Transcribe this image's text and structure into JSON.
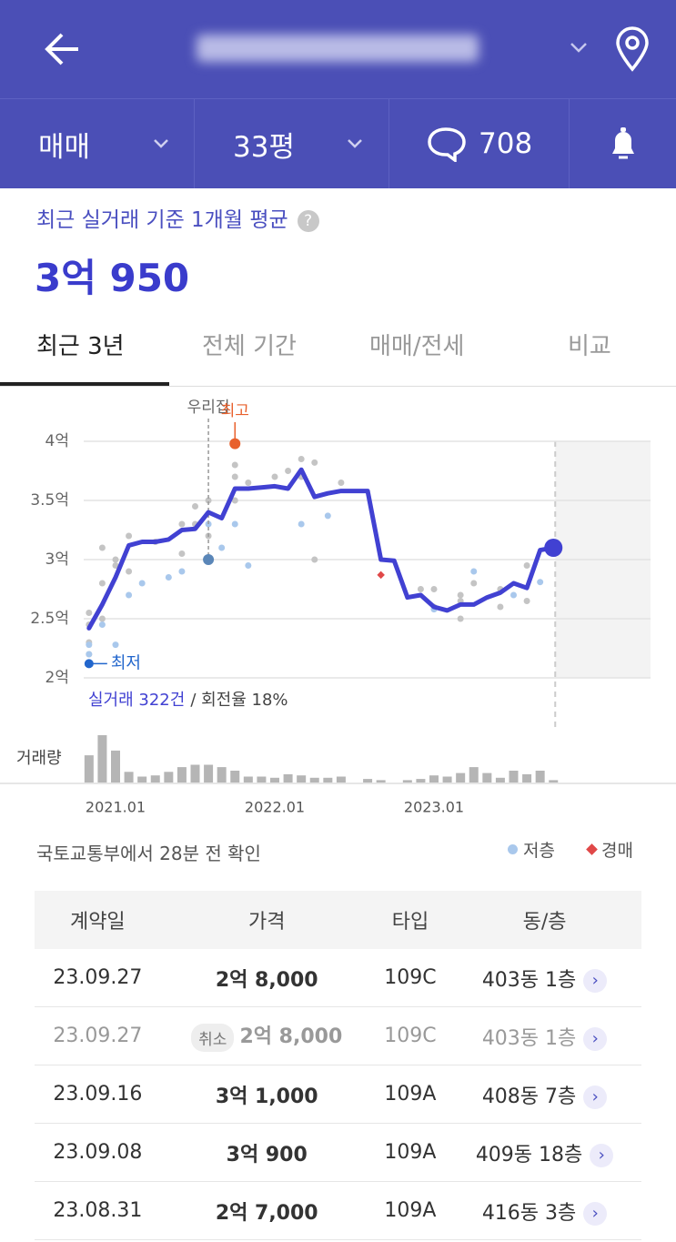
{
  "header": {
    "trade_type": "매매",
    "size": "33평",
    "comment_count": 708
  },
  "summary": {
    "label": "최근 실거래 기준 1개월 평균",
    "value": "3억 950"
  },
  "tabs": [
    "최근 3년",
    "전체 기간",
    "매매/전세",
    "비교"
  ],
  "chart_data": {
    "type": "line",
    "x": [
      "2020.11",
      "2020.12",
      "2021.01",
      "2021.02",
      "2021.03",
      "2021.04",
      "2021.05",
      "2021.06",
      "2021.07",
      "2021.08",
      "2021.09",
      "2021.10",
      "2021.11",
      "2021.12",
      "2022.01",
      "2022.02",
      "2022.03",
      "2022.04",
      "2022.05",
      "2022.06",
      "2022.07",
      "2022.08",
      "2022.09",
      "2022.10",
      "2022.11",
      "2022.12",
      "2023.01",
      "2023.02",
      "2023.03",
      "2023.04",
      "2023.05",
      "2023.06",
      "2023.07",
      "2023.08",
      "2023.09",
      "2023.10"
    ],
    "series": [
      {
        "color": "#4141d2",
        "values": [
          2.42,
          2.62,
          2.85,
          3.12,
          3.15,
          3.15,
          3.17,
          3.25,
          3.26,
          3.4,
          3.35,
          3.6,
          3.6,
          3.61,
          3.62,
          3.6,
          3.76,
          3.53,
          3.56,
          3.58,
          3.58,
          3.58,
          3.0,
          2.99,
          2.68,
          2.7,
          2.6,
          2.57,
          2.62,
          2.62,
          2.68,
          2.72,
          2.8,
          2.76,
          3.08,
          3.1
        ]
      }
    ],
    "points": [
      {
        "color": "#c4c4c4",
        "x": [
          "2020.11",
          "2020.11",
          "2020.11",
          "2020.11",
          "2020.12",
          "2020.12",
          "2020.12",
          "2021.01",
          "2021.01",
          "2021.02",
          "2021.02",
          "2021.04",
          "2021.06",
          "2021.06",
          "2021.07",
          "2021.07",
          "2021.08",
          "2021.08",
          "2021.08",
          "2021.10",
          "2021.10",
          "2021.10",
          "2021.11",
          "2022.01",
          "2022.02",
          "2022.03",
          "2022.03",
          "2022.04",
          "2022.04",
          "2022.06",
          "2022.12",
          "2023.01",
          "2023.01",
          "2023.03",
          "2023.03",
          "2023.03",
          "2023.04",
          "2023.06",
          "2023.06",
          "2023.08",
          "2023.08"
        ],
        "values": [
          2.55,
          2.45,
          2.3,
          2.2,
          2.8,
          2.5,
          3.1,
          3.0,
          2.95,
          3.2,
          2.9,
          3.15,
          3.3,
          3.05,
          3.45,
          3.3,
          3.5,
          3.2,
          3.0,
          3.8,
          3.7,
          3.5,
          3.65,
          3.7,
          3.75,
          3.85,
          3.7,
          3.82,
          3.0,
          3.65,
          2.75,
          2.6,
          2.75,
          2.5,
          2.7,
          2.65,
          2.8,
          2.6,
          2.75,
          2.65,
          2.95
        ]
      },
      {
        "name": "저층",
        "color": "#a9c8ec",
        "x": [
          "2020.11",
          "2020.11",
          "2020.12",
          "2021.01",
          "2021.02",
          "2021.03",
          "2021.05",
          "2021.06",
          "2021.08",
          "2021.08",
          "2021.09",
          "2021.10",
          "2021.11",
          "2022.03",
          "2022.05",
          "2023.01",
          "2023.04",
          "2023.07",
          "2023.09"
        ],
        "values": [
          2.2,
          2.28,
          2.45,
          2.28,
          2.7,
          2.8,
          2.85,
          2.9,
          3.0,
          3.3,
          3.1,
          3.3,
          2.95,
          3.3,
          3.37,
          2.58,
          2.9,
          2.7,
          2.81
        ]
      }
    ],
    "auction": {
      "name": "경매",
      "color": "#e04848",
      "x": [
        "2022.09"
      ],
      "values": [
        2.87
      ]
    },
    "volume": {
      "label": "거래량",
      "color": "#b5b5b5",
      "values": [
        23,
        40,
        27,
        9,
        5,
        6,
        9,
        13,
        15,
        15,
        13,
        10,
        5,
        5,
        4,
        7,
        6,
        4,
        4,
        5,
        0,
        3,
        2,
        0,
        2,
        3,
        6,
        5,
        8,
        13,
        8,
        4,
        10,
        7,
        10,
        2
      ]
    },
    "ylim": [
      2,
      4
    ],
    "yticks": [
      {
        "value": 2,
        "label": "2억"
      },
      {
        "value": 2.5,
        "label": "2.5억"
      },
      {
        "value": 3,
        "label": "3억"
      },
      {
        "value": 3.5,
        "label": "3.5억"
      },
      {
        "value": 4,
        "label": "4억"
      }
    ],
    "xticks": [
      "2021.01",
      "2022.01",
      "2023.01"
    ],
    "grid": true,
    "annotations": {
      "home": {
        "label": "우리집",
        "x": "2021.08",
        "value": 3.0,
        "color": "#5a86b8"
      },
      "high": {
        "label": "최고",
        "x": "2021.10",
        "value": 3.98,
        "color": "#e8602c"
      },
      "low": {
        "label": "최저",
        "x": "2020.11",
        "value": 2.12,
        "color": "#2266cc"
      }
    },
    "deals": "실거래 322건",
    "turnover": "/ 회전율 18%"
  },
  "source_note": "국토교통부에서 28분 전 확인",
  "table": {
    "columns": [
      "계약일",
      "가격",
      "타입",
      "동/층"
    ],
    "cancel_label": "취소",
    "cancelled": [
      false,
      true,
      false,
      false,
      false
    ],
    "rows": [
      [
        "23.09.27",
        "2억 8,000",
        "109C",
        "403동 1층"
      ],
      [
        "23.09.27",
        "2억 8,000",
        "109C",
        "403동 1층"
      ],
      [
        "23.09.16",
        "3억 1,000",
        "109A",
        "408동 7층"
      ],
      [
        "23.09.08",
        "3억 900",
        "109A",
        "409동 18층"
      ],
      [
        "23.08.31",
        "2억 7,000",
        "109A",
        "416동 3층"
      ]
    ]
  }
}
